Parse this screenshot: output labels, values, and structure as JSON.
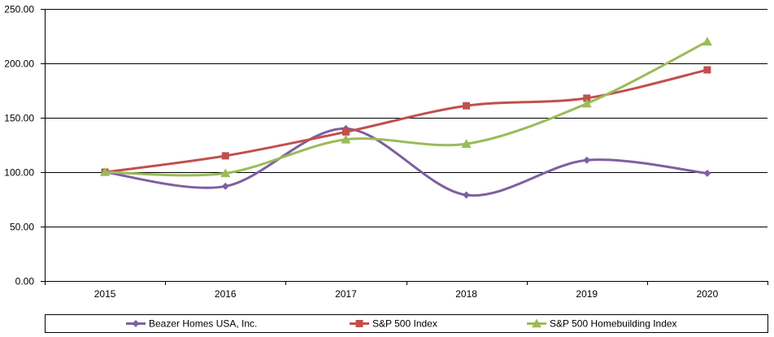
{
  "chart_data": {
    "type": "line",
    "title": "",
    "xlabel": "",
    "ylabel": "",
    "categories": [
      "2015",
      "2016",
      "2017",
      "2018",
      "2019",
      "2020"
    ],
    "ylim": [
      0,
      250
    ],
    "yticks": [
      "0.00",
      "50.00",
      "100.00",
      "150.00",
      "200.00",
      "250.00"
    ],
    "grid": "horizontal",
    "legend_position": "bottom",
    "series": [
      {
        "name": "Beazer Homes USA, Inc.",
        "color": "#7F5FA0",
        "marker": "diamond",
        "values": [
          100,
          87,
          140,
          79,
          111,
          99
        ]
      },
      {
        "name": "S&P 500 Index",
        "color": "#C0504D",
        "marker": "square",
        "values": [
          100,
          115,
          137,
          161,
          168,
          194
        ]
      },
      {
        "name": "S&P 500 Homebuilding Index",
        "color": "#9BBB59",
        "marker": "triangle",
        "values": [
          100,
          99,
          130,
          126,
          163,
          220
        ]
      }
    ]
  }
}
